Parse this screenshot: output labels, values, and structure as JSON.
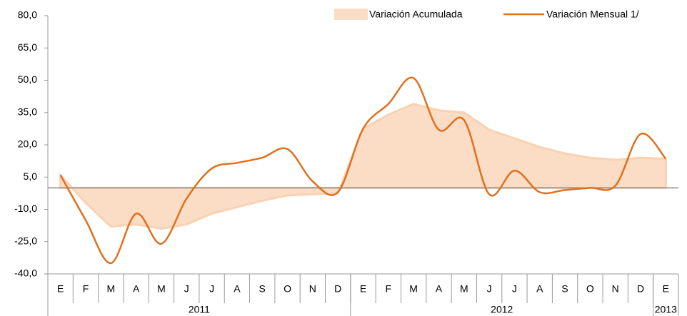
{
  "chart_data": {
    "type": "line",
    "categories": [
      "E",
      "F",
      "M",
      "A",
      "M",
      "J",
      "J",
      "A",
      "S",
      "O",
      "N",
      "D",
      "E",
      "F",
      "M",
      "A",
      "M",
      "J",
      "J",
      "A",
      "S",
      "O",
      "N",
      "D",
      "E"
    ],
    "groups": [
      {
        "label": "2011",
        "count": 12
      },
      {
        "label": "2012",
        "count": 12
      },
      {
        "label": "2013",
        "count": 1
      }
    ],
    "series": [
      {
        "name": "Variación Acumulada",
        "kind": "area",
        "color": "#fbdcc4",
        "values": [
          5.9,
          -7,
          -18,
          -17,
          -19,
          -17,
          -12,
          -9,
          -6,
          -3.5,
          -3,
          -2.5,
          27.5,
          34,
          39,
          36,
          35,
          27,
          23,
          19,
          16,
          14,
          13,
          14,
          13.5
        ]
      },
      {
        "name": "Variación Mensual 1/",
        "kind": "line",
        "color": "#e0701e",
        "values": [
          5.9,
          -15,
          -35,
          -12,
          -26,
          -5,
          9,
          11.6,
          14,
          18,
          3,
          -2,
          27.5,
          39,
          51,
          27,
          31.5,
          -3,
          8,
          -2,
          -1,
          0,
          1,
          25,
          13.5
        ]
      }
    ],
    "ylim": [
      -40,
      80
    ],
    "yticks": [
      {
        "value": -40,
        "label": "-40,0"
      },
      {
        "value": -25,
        "label": "-25,0"
      },
      {
        "value": -10,
        "label": "-10,0"
      },
      {
        "value": 5,
        "label": "5,0"
      },
      {
        "value": 20,
        "label": "20,0"
      },
      {
        "value": 35,
        "label": "35,0"
      },
      {
        "value": 50,
        "label": "50,0"
      },
      {
        "value": 65,
        "label": "65,0"
      },
      {
        "value": 80,
        "label": "80,0"
      }
    ],
    "legend": "top-right"
  }
}
